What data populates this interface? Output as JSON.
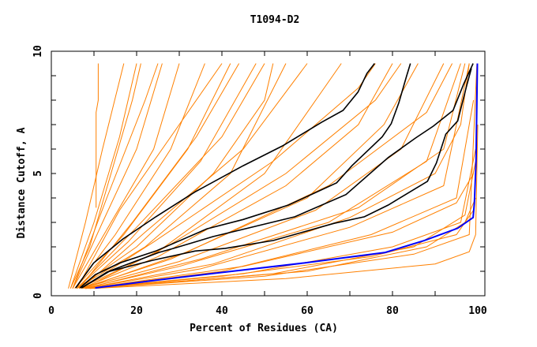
{
  "chart_data": {
    "type": "line",
    "title": "T1094-D2",
    "xlabel": "Percent of Residues (CA)",
    "ylabel": "Distance Cutoff, A",
    "xlim": [
      0,
      100
    ],
    "ylim": [
      0,
      10
    ],
    "xticks": [
      "0",
      "20",
      "40",
      "60",
      "80",
      "100"
    ],
    "yticks": [
      "0",
      "5",
      "10"
    ],
    "grid": false,
    "colors": {
      "orange": "#ff8000",
      "black": "#000000",
      "blue": "#0000ff"
    },
    "series": [
      {
        "color": "#0000ff",
        "points": [
          [
            10.3,
            0.32
          ],
          [
            25.2,
            0.65
          ],
          [
            37.9,
            0.91
          ],
          [
            59.2,
            1.34
          ],
          [
            66.3,
            1.5
          ],
          [
            78.3,
            1.77
          ],
          [
            87.5,
            2.26
          ],
          [
            95.3,
            2.76
          ],
          [
            98.9,
            3.2
          ],
          [
            99.2,
            3.8
          ],
          [
            99.6,
            5.5
          ],
          [
            99.9,
            9.5
          ]
        ]
      },
      {
        "color": "#000000",
        "points": [
          [
            5.7,
            0.32
          ],
          [
            9.9,
            1.34
          ],
          [
            16.7,
            2.31
          ],
          [
            24.5,
            3.23
          ],
          [
            33.7,
            4.25
          ],
          [
            45,
            5.32
          ],
          [
            54.2,
            6.13
          ],
          [
            63.4,
            7.1
          ],
          [
            68.4,
            7.58
          ],
          [
            71.9,
            8.33
          ],
          [
            74,
            9.09
          ],
          [
            75.8,
            9.5
          ]
        ]
      },
      {
        "color": "#000000",
        "points": [
          [
            6.7,
            0.32
          ],
          [
            10.3,
            0.86
          ],
          [
            16,
            1.34
          ],
          [
            24.5,
            1.83
          ],
          [
            29.4,
            2.2
          ],
          [
            36.5,
            2.74
          ],
          [
            45,
            3.12
          ],
          [
            55.6,
            3.71
          ],
          [
            66.9,
            4.62
          ],
          [
            70.5,
            5.32
          ],
          [
            77.6,
            6.5
          ],
          [
            79.7,
            7.04
          ],
          [
            81.5,
            7.9
          ],
          [
            83.3,
            8.98
          ],
          [
            84.2,
            9.5
          ]
        ]
      },
      {
        "color": "#000000",
        "points": [
          [
            7.1,
            0.32
          ],
          [
            13.8,
            1.02
          ],
          [
            25.2,
            1.77
          ],
          [
            28.7,
            1.94
          ],
          [
            37.9,
            2.42
          ],
          [
            57.1,
            3.23
          ],
          [
            69.1,
            4.14
          ],
          [
            79,
            5.65
          ],
          [
            85.4,
            6.45
          ],
          [
            89.6,
            6.94
          ],
          [
            94.2,
            7.58
          ],
          [
            96.7,
            8.66
          ],
          [
            98.9,
            9.5
          ]
        ]
      },
      {
        "color": "#000000",
        "points": [
          [
            7.1,
            0.32
          ],
          [
            13.1,
            0.97
          ],
          [
            23.7,
            1.45
          ],
          [
            33.7,
            1.83
          ],
          [
            40.8,
            1.94
          ],
          [
            52.1,
            2.26
          ],
          [
            66.3,
            2.96
          ],
          [
            73.4,
            3.23
          ],
          [
            79,
            3.71
          ],
          [
            88.2,
            4.68
          ],
          [
            90.3,
            5.43
          ],
          [
            92.5,
            6.61
          ],
          [
            95.3,
            7.15
          ],
          [
            97.4,
            8.6
          ],
          [
            98.5,
            9.3
          ]
        ]
      }
    ],
    "orange_series": [
      [
        [
          4,
          0.3
        ],
        [
          8,
          3
        ],
        [
          12,
          6
        ],
        [
          17,
          9.5
        ]
      ],
      [
        [
          4.5,
          0.3
        ],
        [
          10,
          3
        ],
        [
          16,
          6.5
        ],
        [
          20,
          9.5
        ]
      ],
      [
        [
          5,
          0.3
        ],
        [
          12,
          3
        ],
        [
          20,
          6
        ],
        [
          26,
          9.5
        ]
      ],
      [
        [
          5,
          0.3
        ],
        [
          14,
          3
        ],
        [
          24,
          6
        ],
        [
          30,
          9.5
        ]
      ],
      [
        [
          5.5,
          0.3
        ],
        [
          15,
          2.5
        ],
        [
          28,
          6
        ],
        [
          36,
          9.5
        ]
      ],
      [
        [
          5.5,
          0.3
        ],
        [
          17,
          2.5
        ],
        [
          32,
          6
        ],
        [
          42,
          9.5
        ]
      ],
      [
        [
          6,
          0.3
        ],
        [
          18,
          2.2
        ],
        [
          35,
          5.5
        ],
        [
          48,
          9.5
        ]
      ],
      [
        [
          6,
          0.3
        ],
        [
          20,
          2
        ],
        [
          38,
          5
        ],
        [
          50,
          8
        ],
        [
          52,
          9.5
        ]
      ],
      [
        [
          6,
          0.3
        ],
        [
          22,
          2
        ],
        [
          42,
          5
        ],
        [
          55,
          9.5
        ]
      ],
      [
        [
          6.5,
          0.3
        ],
        [
          25,
          1.8
        ],
        [
          50,
          5
        ],
        [
          62,
          8
        ],
        [
          68,
          9.5
        ]
      ],
      [
        [
          7,
          0.3
        ],
        [
          25,
          1.6
        ],
        [
          55,
          4.5
        ],
        [
          72,
          7
        ],
        [
          80,
          9.5
        ]
      ],
      [
        [
          7,
          0.3
        ],
        [
          28,
          1.5
        ],
        [
          60,
          4
        ],
        [
          78,
          7
        ],
        [
          86,
          9.5
        ]
      ],
      [
        [
          7,
          0.3
        ],
        [
          30,
          1.4
        ],
        [
          62,
          3.5
        ],
        [
          82,
          6
        ],
        [
          92,
          9.5
        ]
      ],
      [
        [
          7.5,
          0.3
        ],
        [
          30,
          1.2
        ],
        [
          65,
          3
        ],
        [
          88,
          5.5
        ],
        [
          96,
          9.5
        ]
      ],
      [
        [
          8,
          0.3
        ],
        [
          35,
          1.1
        ],
        [
          70,
          2.8
        ],
        [
          92,
          4.5
        ],
        [
          98,
          9.5
        ]
      ],
      [
        [
          8,
          0.3
        ],
        [
          40,
          1
        ],
        [
          75,
          2.5
        ],
        [
          95,
          4
        ],
        [
          99,
          8
        ]
      ],
      [
        [
          8,
          0.3
        ],
        [
          45,
          0.9
        ],
        [
          80,
          2
        ],
        [
          96,
          3
        ],
        [
          99.5,
          6
        ]
      ],
      [
        [
          9,
          0.3
        ],
        [
          50,
          0.8
        ],
        [
          85,
          1.7
        ],
        [
          98,
          2.5
        ],
        [
          99.8,
          9.5
        ]
      ],
      [
        [
          10,
          0.3
        ],
        [
          55,
          0.7
        ],
        [
          90,
          1.3
        ],
        [
          98,
          1.8
        ],
        [
          99.5,
          2.5
        ],
        [
          100,
          7
        ]
      ],
      [
        [
          9,
          0.3
        ],
        [
          40,
          0.8
        ],
        [
          75,
          1.6
        ],
        [
          95,
          2.5
        ],
        [
          99,
          3.5
        ]
      ],
      [
        [
          10.5,
          3.6
        ],
        [
          10.5,
          7.5
        ],
        [
          11,
          8
        ],
        [
          11,
          9.5
        ]
      ],
      [
        [
          5,
          0.3
        ],
        [
          13,
          4
        ],
        [
          22,
          8
        ],
        [
          25,
          9.5
        ]
      ],
      [
        [
          6,
          0.3
        ],
        [
          16,
          3.5
        ],
        [
          30,
          7
        ],
        [
          40,
          9.5
        ]
      ],
      [
        [
          7,
          0.3
        ],
        [
          22,
          2.6
        ],
        [
          45,
          6
        ],
        [
          60,
          9.5
        ]
      ],
      [
        [
          7,
          0.3
        ],
        [
          24,
          2.2
        ],
        [
          52,
          5.5
        ],
        [
          72,
          8.5
        ],
        [
          76,
          9.5
        ]
      ],
      [
        [
          7.5,
          0.3
        ],
        [
          32,
          1.8
        ],
        [
          65,
          4.5
        ],
        [
          88,
          7.5
        ],
        [
          94,
          9.5
        ]
      ],
      [
        [
          8,
          0.3
        ],
        [
          35,
          1.5
        ],
        [
          72,
          3.6
        ],
        [
          92,
          6
        ],
        [
          97,
          9.5
        ]
      ],
      [
        [
          6,
          0.3
        ],
        [
          20,
          2.8
        ],
        [
          40,
          6.5
        ],
        [
          50,
          9.5
        ]
      ],
      [
        [
          8.5,
          0.3
        ],
        [
          45,
          1.2
        ],
        [
          80,
          2.6
        ],
        [
          95,
          3.8
        ],
        [
          99,
          5
        ]
      ],
      [
        [
          9,
          0.3
        ],
        [
          60,
          1
        ],
        [
          88,
          2
        ],
        [
          97,
          3
        ],
        [
          99.5,
          4
        ]
      ],
      [
        [
          4.5,
          0.3
        ],
        [
          9,
          2
        ],
        [
          14,
          5
        ],
        [
          19,
          8
        ],
        [
          21,
          9.5
        ]
      ],
      [
        [
          6.5,
          0.3
        ],
        [
          19,
          3
        ],
        [
          34,
          6.5
        ],
        [
          44,
          9.5
        ]
      ],
      [
        [
          7.5,
          0.3
        ],
        [
          27,
          2
        ],
        [
          55,
          5
        ],
        [
          76,
          8
        ],
        [
          82,
          9.5
        ]
      ],
      [
        [
          8,
          0.3
        ],
        [
          38,
          1.3
        ],
        [
          70,
          3.2
        ],
        [
          90,
          5
        ],
        [
          96,
          7
        ],
        [
          98,
          9.5
        ]
      ],
      [
        [
          9.5,
          0.3
        ],
        [
          52,
          0.9
        ],
        [
          85,
          2
        ],
        [
          97,
          3.3
        ],
        [
          99.5,
          5.5
        ]
      ]
    ]
  }
}
